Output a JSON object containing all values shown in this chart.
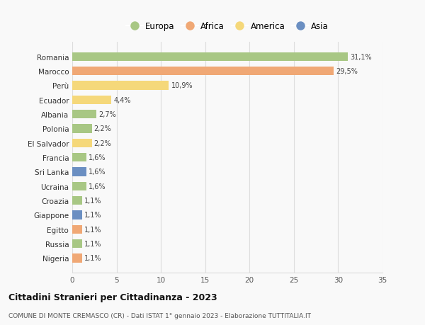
{
  "countries": [
    "Romania",
    "Marocco",
    "Perù",
    "Ecuador",
    "Albania",
    "Polonia",
    "El Salvador",
    "Francia",
    "Sri Lanka",
    "Ucraina",
    "Croazia",
    "Giappone",
    "Egitto",
    "Russia",
    "Nigeria"
  ],
  "values": [
    31.1,
    29.5,
    10.9,
    4.4,
    2.7,
    2.2,
    2.2,
    1.6,
    1.6,
    1.6,
    1.1,
    1.1,
    1.1,
    1.1,
    1.1
  ],
  "labels": [
    "31,1%",
    "29,5%",
    "10,9%",
    "4,4%",
    "2,7%",
    "2,2%",
    "2,2%",
    "1,6%",
    "1,6%",
    "1,6%",
    "1,1%",
    "1,1%",
    "1,1%",
    "1,1%",
    "1,1%"
  ],
  "continents": [
    "Europa",
    "Africa",
    "America",
    "America",
    "Europa",
    "Europa",
    "America",
    "Europa",
    "Asia",
    "Europa",
    "Europa",
    "Asia",
    "Africa",
    "Europa",
    "Africa"
  ],
  "continent_colors": {
    "Europa": "#a8c784",
    "Africa": "#f0a875",
    "America": "#f5d87a",
    "Asia": "#6b8fc2"
  },
  "legend_order": [
    "Europa",
    "Africa",
    "America",
    "Asia"
  ],
  "title": "Cittadini Stranieri per Cittadinanza - 2023",
  "subtitle": "COMUNE DI MONTE CREMASCO (CR) - Dati ISTAT 1° gennaio 2023 - Elaborazione TUTTITALIA.IT",
  "xlim": [
    0,
    35
  ],
  "xticks": [
    0,
    5,
    10,
    15,
    20,
    25,
    30,
    35
  ],
  "bg_color": "#f9f9f9",
  "grid_color": "#dddddd",
  "bar_height": 0.6
}
